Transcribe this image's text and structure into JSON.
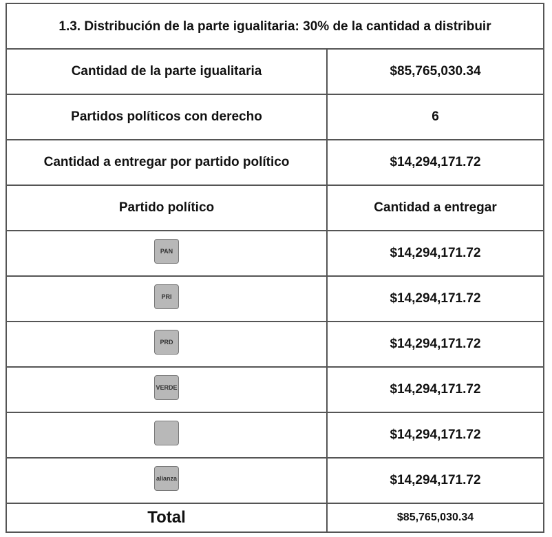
{
  "title": "1.3. Distribución de la parte igualitaria: 30% de la cantidad a distribuir",
  "info": [
    {
      "label": "Cantidad de la parte igualitaria",
      "value": "$85,765,030.34"
    },
    {
      "label": "Partidos políticos con derecho",
      "value": "6"
    },
    {
      "label": "Cantidad a entregar por partido político",
      "value": "$14,294,171.72"
    }
  ],
  "header": [
    "Partido político",
    "Cantidad a entregar"
  ],
  "rows": [
    {
      "logo": "PAN",
      "amount": "$14,294,171.72"
    },
    {
      "logo": "PRI",
      "amount": "$14,294,171.72"
    },
    {
      "logo": "PRD",
      "amount": "$14,294,171.72"
    },
    {
      "logo": "VERDE",
      "amount": "$14,294,171.72"
    },
    {
      "amount": "$14,294,171.72"
    },
    {
      "logo": "alianza",
      "amount": "$14,294,171.72"
    }
  ],
  "total": {
    "label": "Total",
    "value": "$85,765,030.34"
  }
}
